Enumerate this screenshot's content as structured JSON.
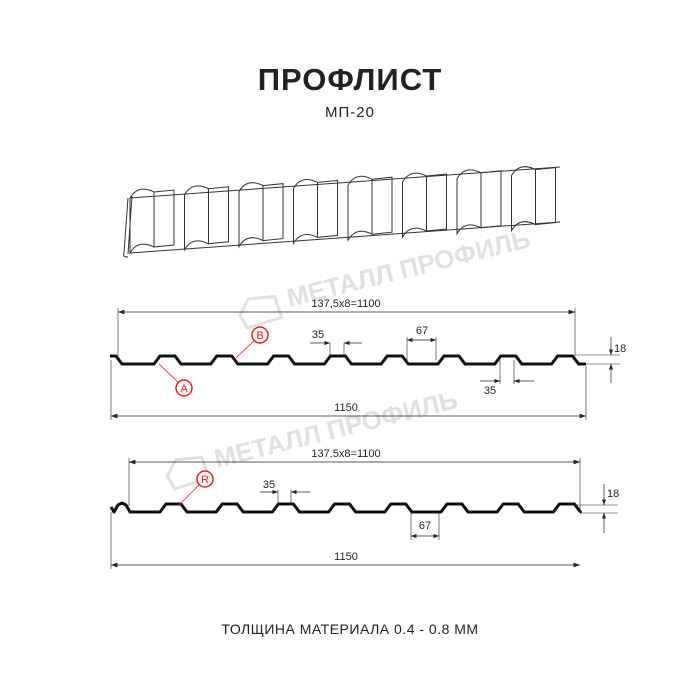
{
  "title": "ПРОФЛИСТ",
  "subtitle": "МП-20",
  "footer": "ТОЛЩИНА МАТЕРИАЛА 0.4 - 0.8 ММ",
  "watermark": "МЕТАЛЛ ПРОФИЛЬ",
  "accent_color": "#e8201e",
  "profile_a": {
    "pitch_label": "137,5x8=1100",
    "width_label": "1150",
    "rib_top_label": "35",
    "rib_bottom_label": "35",
    "gap_label": "67",
    "height_label": "18",
    "marker_a": "A",
    "marker_b": "B"
  },
  "profile_r": {
    "pitch_label": "137.5x8=1100",
    "width_label": "1150",
    "rib_top_label": "35",
    "gap_label": "67",
    "height_label": "18",
    "marker_r": "R"
  }
}
